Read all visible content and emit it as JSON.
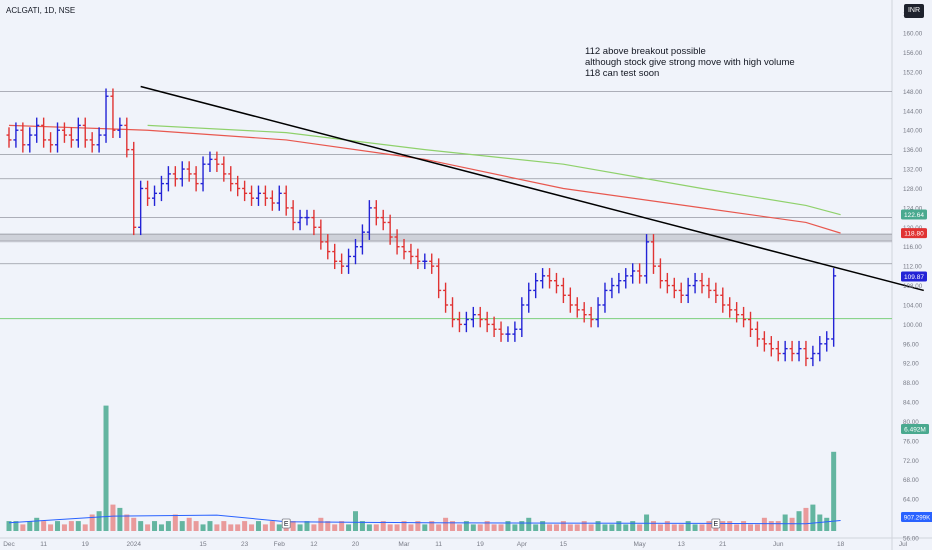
{
  "header": {
    "symbol": "ACLGATI, 1D, NSE",
    "currency": "INR"
  },
  "note": [
    "112 above breakout possible",
    "although stock give strong move with high volume",
    "118 can test soon"
  ],
  "colors": {
    "up": "#2323d6",
    "down": "#e03333",
    "vol_up": "#4aa98f",
    "vol_down": "#e88a8a",
    "ma_red": "#e8584f",
    "ma_green": "#8fd16b",
    "volma": "#2962ff",
    "trend": "#000000",
    "level": "#9598a1",
    "support": "#7ccf7c"
  },
  "chart_data": {
    "type": "ohlc",
    "title": "ACLGATI, 1D, NSE",
    "currency": "INR",
    "price_axis": {
      "ylim": [
        56,
        166
      ],
      "ticks": [
        164,
        160,
        156,
        152,
        148,
        144,
        140,
        136,
        132,
        128,
        124,
        120,
        116,
        112,
        108,
        104,
        100,
        96,
        92,
        88,
        84,
        80,
        76,
        72,
        68,
        64,
        60,
        56
      ]
    },
    "time_axis": [
      {
        "label": "Dec",
        "i": 0
      },
      {
        "label": "11",
        "i": 5
      },
      {
        "label": "19",
        "i": 11
      },
      {
        "label": "2024",
        "i": 18
      },
      {
        "label": "15",
        "i": 28
      },
      {
        "label": "23",
        "i": 34
      },
      {
        "label": "Feb",
        "i": 39
      },
      {
        "label": "12",
        "i": 44
      },
      {
        "label": "20",
        "i": 50
      },
      {
        "label": "Mar",
        "i": 57
      },
      {
        "label": "11",
        "i": 62
      },
      {
        "label": "19",
        "i": 68
      },
      {
        "label": "Apr",
        "i": 74
      },
      {
        "label": "15",
        "i": 80
      },
      {
        "label": "May",
        "i": 91
      },
      {
        "label": "13",
        "i": 97
      },
      {
        "label": "21",
        "i": 103
      },
      {
        "label": "Jun",
        "i": 111
      },
      {
        "label": "18",
        "i": 120
      },
      {
        "label": "Jul",
        "i": 129
      }
    ],
    "closes": [
      138,
      140,
      137,
      139,
      141,
      138,
      137,
      140,
      139,
      138,
      141,
      138,
      137,
      139,
      147,
      140,
      141,
      136,
      120,
      128,
      126,
      127,
      129,
      131,
      130,
      132,
      131,
      129,
      133,
      134,
      133,
      131,
      129,
      128,
      127,
      126,
      127,
      126,
      125,
      127,
      124,
      121,
      122,
      122,
      120,
      117,
      115,
      113,
      112,
      114,
      116,
      119,
      124,
      122,
      121,
      118,
      116,
      115,
      114,
      113,
      113,
      112,
      107,
      104,
      101,
      100,
      101,
      102,
      101,
      100,
      99,
      98,
      98,
      99,
      104,
      107,
      109,
      110,
      109,
      108,
      106,
      104,
      103,
      102,
      101,
      104,
      107,
      108,
      109,
      110,
      111,
      110,
      117,
      112,
      109,
      108,
      107,
      106,
      108,
      109,
      108,
      107,
      106,
      104,
      103,
      102,
      101,
      99,
      97,
      96,
      95,
      94,
      95,
      94,
      95,
      93,
      94,
      96,
      97,
      110
    ],
    "day_count": 132,
    "volume_scale": {
      "ylim": [
        0,
        40
      ]
    },
    "volumes": [
      3,
      3,
      2,
      3,
      4,
      3,
      2,
      3,
      2,
      3,
      3,
      2,
      5,
      6,
      38,
      8,
      7,
      5,
      4,
      3,
      2,
      3,
      2,
      3,
      5,
      3,
      4,
      3,
      2,
      3,
      2,
      3,
      2,
      2,
      3,
      2,
      3,
      2,
      3,
      2,
      2,
      3,
      2,
      3,
      2,
      4,
      3,
      2,
      3,
      2,
      6,
      3,
      2,
      2,
      3,
      2,
      2,
      3,
      2,
      3,
      2,
      3,
      2,
      4,
      3,
      2,
      3,
      2,
      2,
      3,
      2,
      2,
      3,
      2,
      3,
      4,
      2,
      3,
      2,
      2,
      3,
      2,
      2,
      3,
      2,
      3,
      2,
      2,
      3,
      2,
      3,
      2,
      5,
      3,
      2,
      3,
      2,
      2,
      3,
      2,
      2,
      3,
      2,
      3,
      3,
      2,
      3,
      2,
      2,
      4,
      3,
      3,
      5,
      4,
      6,
      7,
      8,
      5,
      4,
      24
    ],
    "volume_labels": {
      "last_volume": "6.492M",
      "vol_ma": "907.299K"
    },
    "price_labels": [
      {
        "value": 122.64,
        "color": "#4aa98f"
      },
      {
        "value": 118.8,
        "color": "#e03333"
      },
      {
        "value": 109.87,
        "color": "#2323d6"
      }
    ],
    "horizontal_levels": [
      148,
      135,
      130,
      122,
      118.5,
      117.2,
      112.5,
      101.2
    ],
    "trendline": {
      "from": {
        "i": 19,
        "price": 149
      },
      "to": {
        "i": 132,
        "price": 107
      }
    },
    "ma_red": [
      [
        0,
        141
      ],
      [
        20,
        140
      ],
      [
        40,
        138
      ],
      [
        60,
        134
      ],
      [
        80,
        128
      ],
      [
        100,
        124
      ],
      [
        115,
        121
      ],
      [
        120,
        118.8
      ]
    ],
    "ma_green": [
      [
        20,
        141
      ],
      [
        40,
        139.5
      ],
      [
        60,
        136
      ],
      [
        80,
        133
      ],
      [
        100,
        128
      ],
      [
        115,
        124.5
      ],
      [
        120,
        122.6
      ]
    ],
    "vol_ma": [
      [
        0,
        2.5
      ],
      [
        15,
        4.5
      ],
      [
        30,
        4.8
      ],
      [
        40,
        2.8
      ],
      [
        60,
        2.5
      ],
      [
        80,
        2.4
      ],
      [
        100,
        2.3
      ],
      [
        115,
        2.2
      ],
      [
        120,
        3.2
      ]
    ],
    "earnings_markers": [
      {
        "i": 40,
        "label": "E"
      },
      {
        "i": 102,
        "label": "E"
      }
    ],
    "grid": false,
    "legend": "none"
  }
}
